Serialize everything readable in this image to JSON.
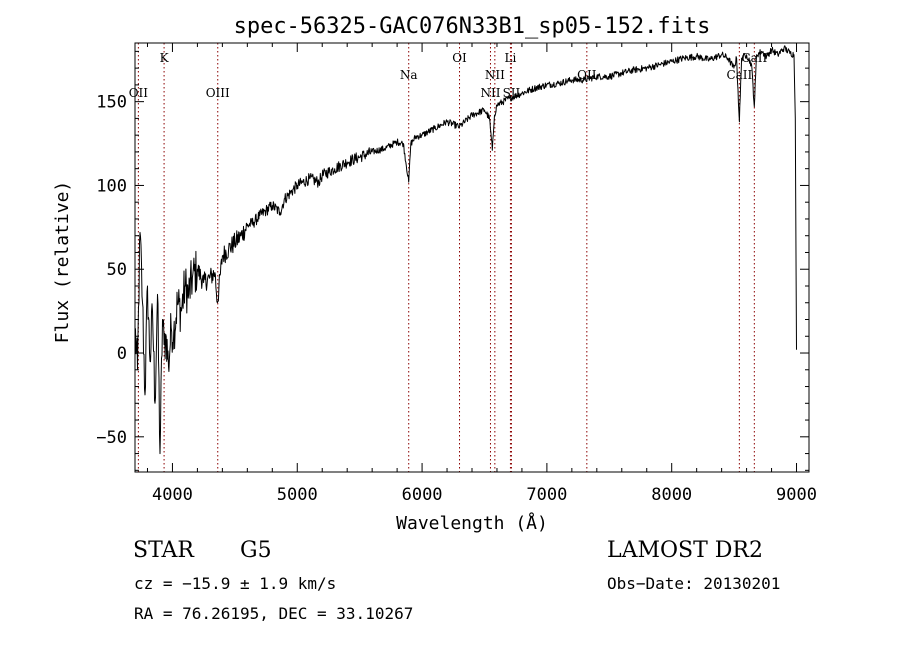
{
  "chart_data": {
    "type": "line",
    "title": "spec-56325-GAC076N33B1_sp05-152.fits",
    "xlabel": "Wavelength (Å)",
    "ylabel": "Flux (relative)",
    "xlim": [
      3700,
      9100
    ],
    "ylim": [
      -71,
      185
    ],
    "xticks": [
      4000,
      5000,
      6000,
      7000,
      8000,
      9000
    ],
    "yticks": [
      -50,
      0,
      50,
      100,
      150
    ],
    "grid": false,
    "series": [
      {
        "x": [
          3700,
          3720,
          3740,
          3760,
          3780,
          3800,
          3820,
          3840,
          3860,
          3880,
          3900,
          3920,
          3933,
          3950,
          3968,
          3990,
          4010,
          4040,
          4070,
          4100,
          4130,
          4160,
          4200,
          4250,
          4300,
          4340,
          4360,
          4400,
          4450,
          4500,
          4550,
          4600,
          4650,
          4700,
          4750,
          4800,
          4861,
          4900,
          4950,
          5000,
          5100,
          5173,
          5200,
          5300,
          5400,
          5500,
          5600,
          5700,
          5800,
          5850,
          5893,
          5910,
          5950,
          6000,
          6100,
          6200,
          6300,
          6400,
          6500,
          6540,
          6563,
          6580,
          6600,
          6700,
          6800,
          6900,
          7000,
          7100,
          7200,
          7300,
          7400,
          7500,
          7600,
          7700,
          7800,
          7900,
          8000,
          8100,
          8200,
          8300,
          8400,
          8450,
          8498,
          8520,
          8542,
          8560,
          8600,
          8640,
          8662,
          8680,
          8720,
          8760,
          8800,
          8850,
          8900,
          8950,
          8980,
          8990,
          9000
        ],
        "y": [
          15,
          -10,
          72,
          30,
          -25,
          40,
          -5,
          25,
          -30,
          35,
          -60,
          20,
          5,
          10,
          -8,
          15,
          12,
          30,
          25,
          40,
          35,
          45,
          50,
          42,
          45,
          48,
          30,
          58,
          62,
          66,
          70,
          76,
          78,
          82,
          85,
          88,
          84,
          92,
          96,
          100,
          104,
          102,
          106,
          110,
          114,
          117,
          120,
          122,
          126,
          125,
          102,
          125,
          129,
          130,
          134,
          138,
          135,
          142,
          145,
          140,
          121,
          142,
          148,
          152,
          155,
          158,
          160,
          161,
          163,
          163,
          165,
          165,
          167,
          169,
          170,
          172,
          174,
          176,
          177,
          175,
          178,
          176,
          170,
          176,
          138,
          176,
          178,
          172,
          147,
          178,
          180,
          177,
          181,
          178,
          182,
          179,
          178,
          140,
          2
        ]
      }
    ],
    "line_color": "#000000",
    "marker_color": "#8b0000",
    "line_markers": [
      {
        "label": "OII",
        "x": 3727,
        "row": "low"
      },
      {
        "label": "K",
        "x": 3933,
        "row": "high"
      },
      {
        "label": "OIII",
        "x": 4363,
        "row": "low"
      },
      {
        "label": "Na",
        "x": 5893,
        "row": "mid"
      },
      {
        "label": "OI",
        "x": 6300,
        "row": "high"
      },
      {
        "label": "NII",
        "x": 6548,
        "row": "low"
      },
      {
        "label": "NII",
        "x": 6583,
        "row": "mid"
      },
      {
        "label": "Li",
        "x": 6708,
        "row": "high"
      },
      {
        "label": "SII",
        "x": 6716,
        "row": "low"
      },
      {
        "label": "OII",
        "x": 7320,
        "row": "mid"
      },
      {
        "label": "CaII",
        "x": 8542,
        "row": "mid"
      },
      {
        "label": "CaII",
        "x": 8662,
        "row": "high"
      }
    ]
  },
  "info": {
    "object_type": "STAR",
    "subclass": "G5",
    "survey": "LAMOST DR2",
    "cz": "cz = −15.9 ± 1.9 km/s",
    "obs_date": "Obs−Date: 20130201",
    "coords": "RA =  76.26195, DEC =  33.10267"
  }
}
